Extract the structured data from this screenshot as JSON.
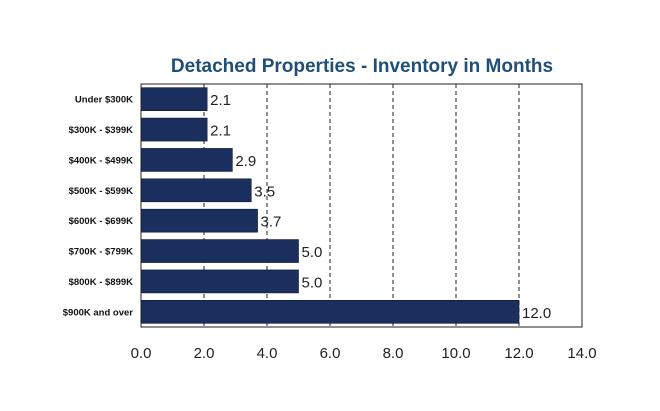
{
  "chart_data": {
    "type": "bar",
    "orientation": "horizontal",
    "title": "Detached Properties - Inventory in Months",
    "categories": [
      "Under $300K",
      "$300K - $399K",
      "$400K - $499K",
      "$500K - $599K",
      "$600K - $699K",
      "$700K - $799K",
      "$800K - $899K",
      "$900K and over"
    ],
    "values": [
      2.1,
      2.1,
      2.9,
      3.5,
      3.7,
      5.0,
      5.0,
      12.0
    ],
    "data_labels": [
      "2.1",
      "2.1",
      "2.9",
      "3.5",
      "3.7",
      "5.0",
      "5.0",
      "12.0"
    ],
    "xticks": [
      "0.0",
      "2.0",
      "4.0",
      "6.0",
      "8.0",
      "10.0",
      "12.0",
      "14.0"
    ],
    "xlim": [
      0,
      14
    ],
    "grid": "vertical dashed",
    "bar_color": "#1b2f5e",
    "title_color": "#1f4e79"
  }
}
